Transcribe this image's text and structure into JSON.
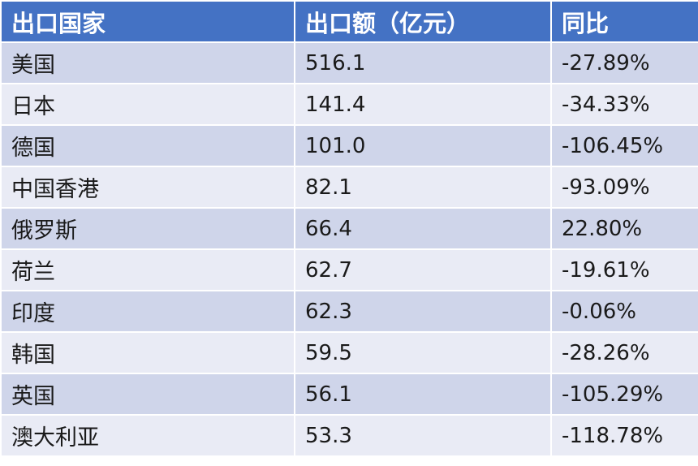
{
  "chart_data": {
    "type": "table",
    "columns": [
      "出口国家",
      "出口额（亿元）",
      "同比"
    ],
    "rows": [
      [
        "美国",
        "516.1",
        "-27.89%"
      ],
      [
        "日本",
        "141.4",
        "-34.33%"
      ],
      [
        "德国",
        "101.0",
        "-106.45%"
      ],
      [
        "中国香港",
        "82.1",
        "-93.09%"
      ],
      [
        "俄罗斯",
        "66.4",
        "22.80%"
      ],
      [
        "荷兰",
        "62.7",
        "-19.61%"
      ],
      [
        "印度",
        "62.3",
        "-0.06%"
      ],
      [
        "韩国",
        "59.5",
        "-28.26%"
      ],
      [
        "英国",
        "56.1",
        "-105.29%"
      ],
      [
        "澳大利亚",
        "53.3",
        "-118.78%"
      ]
    ]
  },
  "colors": {
    "header_bg": "#4472c4",
    "row_odd_bg": "#cfd5ea",
    "row_even_bg": "#e9ebf5"
  }
}
